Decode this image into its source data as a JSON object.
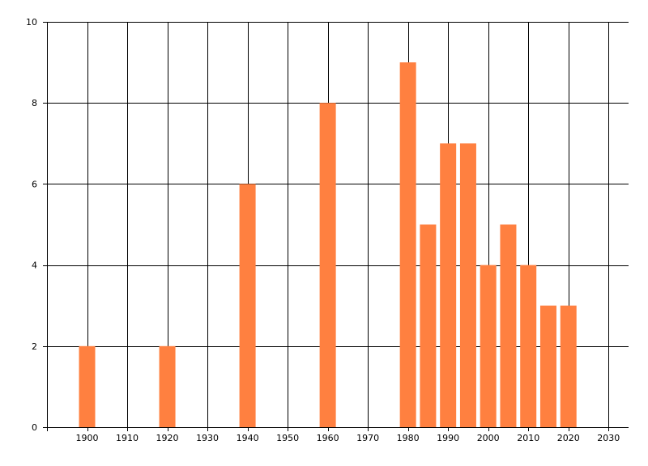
{
  "chart_data": {
    "type": "bar",
    "x": [
      1900,
      1920,
      1940,
      1960,
      1980,
      1985,
      1990,
      1995,
      2000,
      2005,
      2010,
      2015,
      2020
    ],
    "values": [
      2,
      2,
      6,
      8,
      9,
      5,
      7,
      7,
      4,
      5,
      4,
      3,
      3
    ],
    "title": "",
    "xlabel": "",
    "ylabel": "",
    "xlim": [
      1890,
      2035
    ],
    "ylim": [
      0,
      10
    ],
    "x_ticks": [
      1900,
      1910,
      1920,
      1930,
      1940,
      1950,
      1960,
      1970,
      1980,
      1990,
      2000,
      2010,
      2020,
      2030
    ],
    "y_ticks": [
      0,
      2,
      4,
      6,
      8,
      10
    ],
    "bar_color": "#FF8040",
    "grid": true,
    "legend": "none"
  }
}
